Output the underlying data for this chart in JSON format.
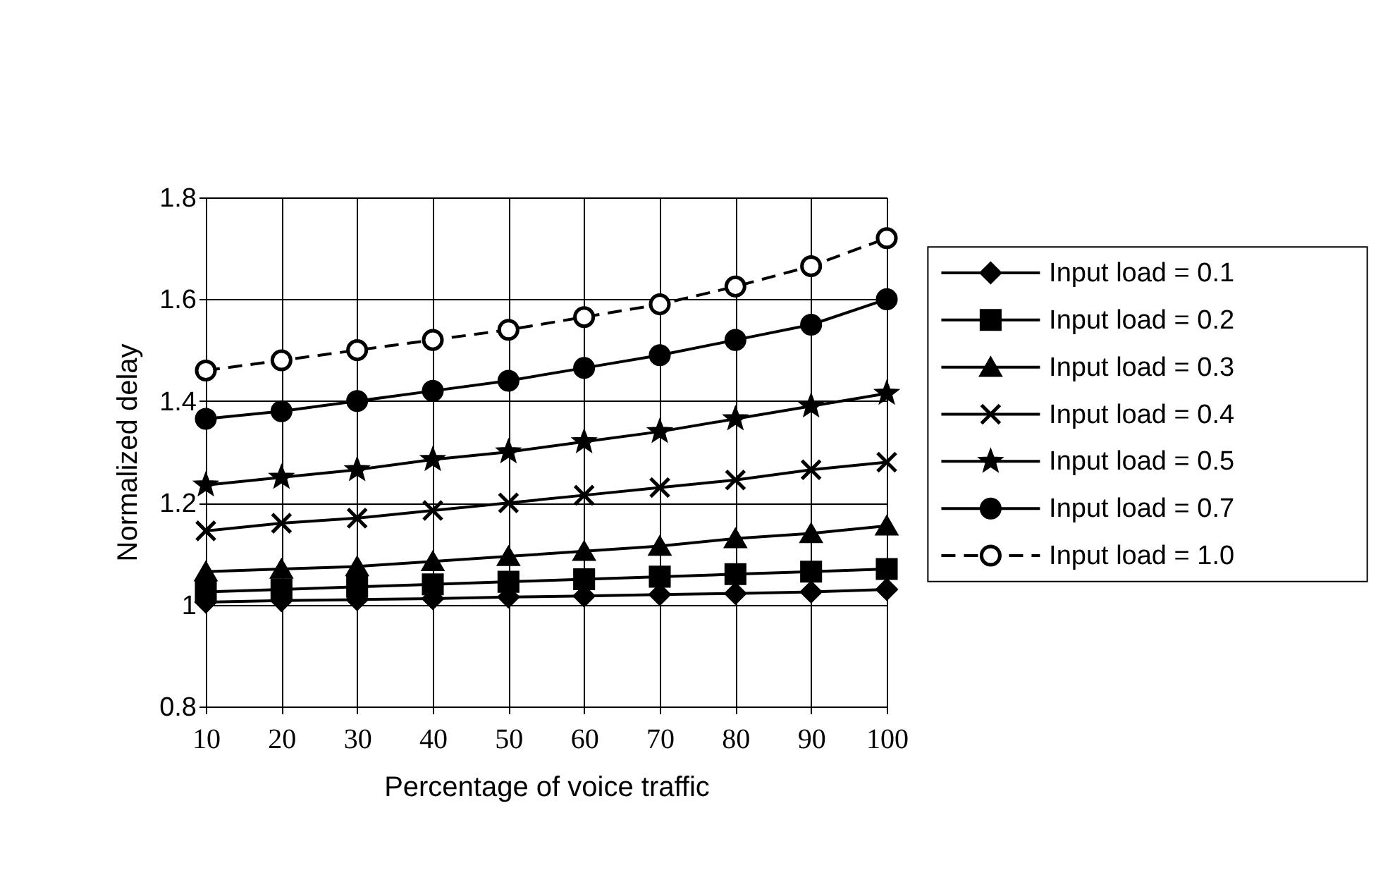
{
  "chart_data": {
    "type": "line",
    "xlabel": "Percentage of voice traffic",
    "ylabel": "Normalized delay",
    "x": [
      10,
      20,
      30,
      40,
      50,
      60,
      70,
      80,
      90,
      100
    ],
    "xlim": [
      10,
      100
    ],
    "xticks": [
      10,
      20,
      30,
      40,
      50,
      60,
      70,
      80,
      90,
      100
    ],
    "ylim": [
      0.8,
      1.8
    ],
    "yticks": [
      0.8,
      1,
      1.2,
      1.4,
      1.6,
      1.8
    ],
    "grid": true,
    "legend": "right",
    "series": [
      {
        "name": "Input load = 0.1",
        "color": "#000000",
        "marker": "diamond",
        "line_style": "solid",
        "values": [
          1.005,
          1.008,
          1.01,
          1.012,
          1.015,
          1.017,
          1.02,
          1.022,
          1.025,
          1.03
        ]
      },
      {
        "name": "Input load = 0.2",
        "color": "#000000",
        "marker": "square",
        "line_style": "solid",
        "values": [
          1.025,
          1.03,
          1.035,
          1.04,
          1.045,
          1.05,
          1.055,
          1.06,
          1.065,
          1.07
        ]
      },
      {
        "name": "Input load = 0.3",
        "color": "#000000",
        "marker": "triangle",
        "line_style": "solid",
        "values": [
          1.065,
          1.07,
          1.075,
          1.085,
          1.095,
          1.105,
          1.115,
          1.13,
          1.14,
          1.155
        ]
      },
      {
        "name": "Input load = 0.4",
        "color": "#000000",
        "marker": "cross",
        "line_style": "solid",
        "values": [
          1.145,
          1.16,
          1.17,
          1.185,
          1.2,
          1.215,
          1.23,
          1.245,
          1.265,
          1.28
        ]
      },
      {
        "name": "Input load = 0.5",
        "color": "#000000",
        "marker": "star",
        "line_style": "solid",
        "values": [
          1.235,
          1.25,
          1.265,
          1.285,
          1.3,
          1.32,
          1.34,
          1.365,
          1.39,
          1.415
        ]
      },
      {
        "name": "Input load = 0.7",
        "color": "#000000",
        "marker": "circle",
        "line_style": "solid",
        "values": [
          1.365,
          1.38,
          1.4,
          1.42,
          1.44,
          1.465,
          1.49,
          1.52,
          1.55,
          1.6
        ]
      },
      {
        "name": "Input load = 1.0",
        "color": "#000000",
        "marker": "circle",
        "line_style": "dashed",
        "values": [
          1.46,
          1.48,
          1.5,
          1.52,
          1.54,
          1.565,
          1.59,
          1.625,
          1.665,
          1.72
        ]
      }
    ]
  }
}
